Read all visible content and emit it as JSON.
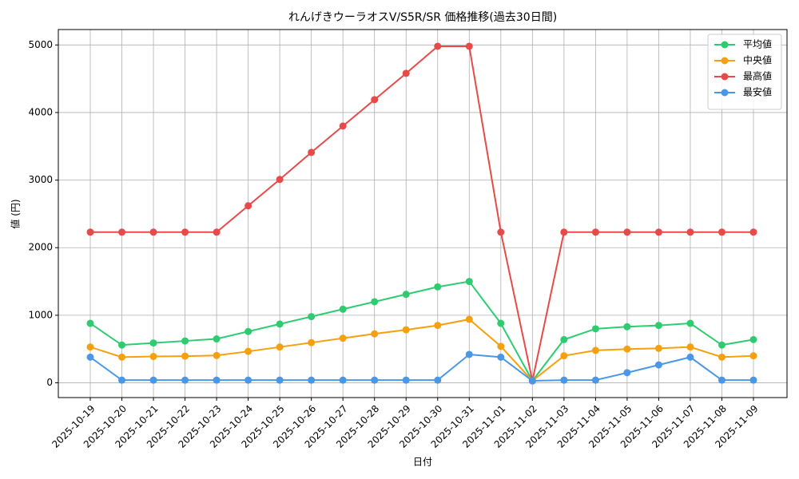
{
  "chart_data": {
    "type": "line",
    "title": "れんげきウーラオスV/S5R/SR 価格推移(過去30日間)",
    "x_label": "日付",
    "y_label": "値 (円)",
    "categories": [
      "2025-10-19",
      "2025-10-20",
      "2025-10-21",
      "2025-10-22",
      "2025-10-23",
      "2025-10-24",
      "2025-10-25",
      "2025-10-26",
      "2025-10-27",
      "2025-10-28",
      "2025-10-29",
      "2025-10-30",
      "2025-10-31",
      "2025-11-01",
      "2025-11-02",
      "2025-11-03",
      "2025-11-04",
      "2025-11-05",
      "2025-11-06",
      "2025-11-07",
      "2025-11-08",
      "2025-11-09"
    ],
    "series": [
      {
        "name": "平均値",
        "color": "#2ecc71",
        "values": [
          880,
          560,
          590,
          620,
          650,
          760,
          870,
          980,
          1090,
          1200,
          1310,
          1420,
          1500,
          880,
          30,
          640,
          800,
          830,
          850,
          880,
          560,
          640
        ]
      },
      {
        "name": "中央値",
        "color": "#f5a00f",
        "values": [
          530,
          380,
          390,
          395,
          405,
          465,
          530,
          595,
          660,
          725,
          785,
          850,
          940,
          540,
          30,
          400,
          480,
          500,
          510,
          530,
          380,
          400
        ]
      },
      {
        "name": "最高値",
        "color": "#e84a4a",
        "values": [
          2230,
          2230,
          2230,
          2230,
          2230,
          2620,
          3010,
          3410,
          3800,
          4190,
          4580,
          4980,
          4980,
          2230,
          30,
          2230,
          2230,
          2230,
          2230,
          2230,
          2230,
          2230
        ]
      },
      {
        "name": "最安値",
        "color": "#4a97e8",
        "values": [
          380,
          40,
          40,
          40,
          40,
          40,
          40,
          40,
          40,
          40,
          40,
          40,
          420,
          380,
          30,
          40,
          40,
          150,
          265,
          380,
          40,
          40
        ]
      }
    ],
    "ylim": [
      -218,
      5228
    ],
    "yticks": [
      0,
      1000,
      2000,
      3000,
      4000,
      5000
    ],
    "grid": true,
    "legend": "upper right"
  }
}
